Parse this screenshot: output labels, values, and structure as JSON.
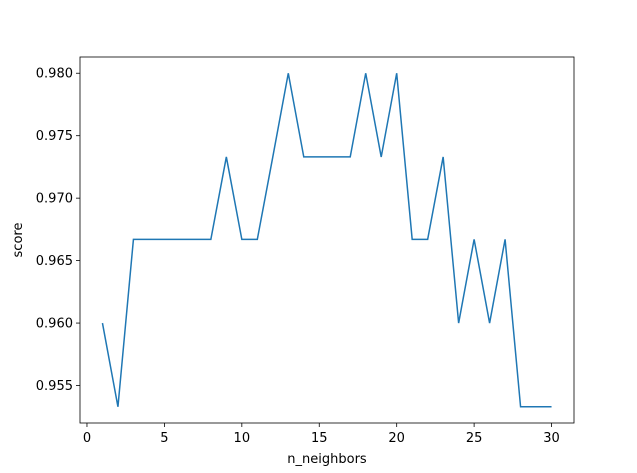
{
  "chart_data": {
    "type": "line",
    "x_label": "n_neighbors",
    "y_label": "score",
    "x": [
      1,
      2,
      3,
      4,
      5,
      6,
      7,
      8,
      9,
      10,
      11,
      12,
      13,
      14,
      15,
      16,
      17,
      18,
      19,
      20,
      21,
      22,
      23,
      24,
      25,
      26,
      27,
      28,
      29,
      30
    ],
    "series": [
      {
        "color": "#1f77b4",
        "values": [
          0.96,
          0.9533,
          0.9667,
          0.9667,
          0.9667,
          0.9667,
          0.9667,
          0.9667,
          0.9733,
          0.9667,
          0.9667,
          0.9733,
          0.98,
          0.9733,
          0.9733,
          0.9733,
          0.9733,
          0.98,
          0.9733,
          0.98,
          0.9667,
          0.9667,
          0.9733,
          0.96,
          0.9667,
          0.96,
          0.9667,
          0.9533,
          0.9533,
          0.9533
        ]
      }
    ],
    "xlim": [
      -0.45,
      31.45
    ],
    "xticks": [
      0,
      5,
      10,
      15,
      20,
      25,
      30
    ],
    "ylim": [
      0.952,
      0.9813
    ],
    "yticks": [
      0.955,
      {
        "value": 0.96,
        "label": "0.960"
      },
      0.965,
      {
        "value": 0.97,
        "label": "0.970"
      },
      0.975,
      {
        "value": 0.98,
        "label": "0.980"
      }
    ],
    "grid": false
  }
}
